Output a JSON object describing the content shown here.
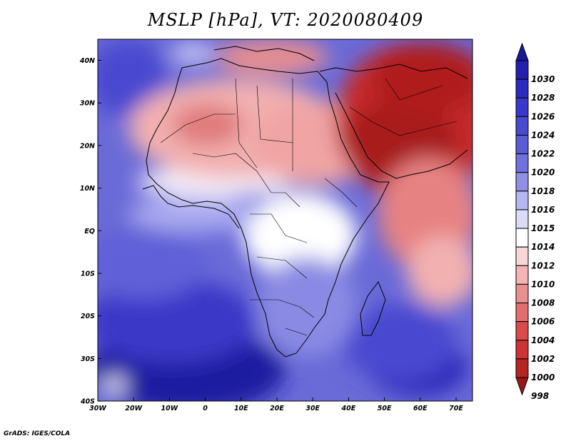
{
  "title": "MSLP [hPa], VT: 2020080409",
  "credit": "GrADS: IGES/COLA",
  "lon_labels": [
    "30W",
    "20W",
    "10W",
    "0",
    "10E",
    "20E",
    "30E",
    "40E",
    "50E",
    "60E",
    "70E"
  ],
  "lat_labels": [
    "40N",
    "30N",
    "20N",
    "10N",
    "EQ",
    "10S",
    "20S",
    "30S",
    "40S"
  ],
  "colorbar": {
    "levels": [
      "1030",
      "1028",
      "1026",
      "1024",
      "1022",
      "1020",
      "1018",
      "1016",
      "1015",
      "1014",
      "1012",
      "1010",
      "1008",
      "1006",
      "1004",
      "1002",
      "1000",
      "998"
    ],
    "colors": [
      "#1a1799",
      "#231fb0",
      "#2d2ac2",
      "#3a38cc",
      "#4a49d2",
      "#5b5bd8",
      "#7070de",
      "#8f8fe6",
      "#b6b6f0",
      "#dcdcf8",
      "#ffffff",
      "#f8d6d6",
      "#f2b4b4",
      "#ea8f8f",
      "#e36c6c",
      "#dc4a4a",
      "#cd3333",
      "#b72424",
      "#9c1818"
    ]
  }
}
